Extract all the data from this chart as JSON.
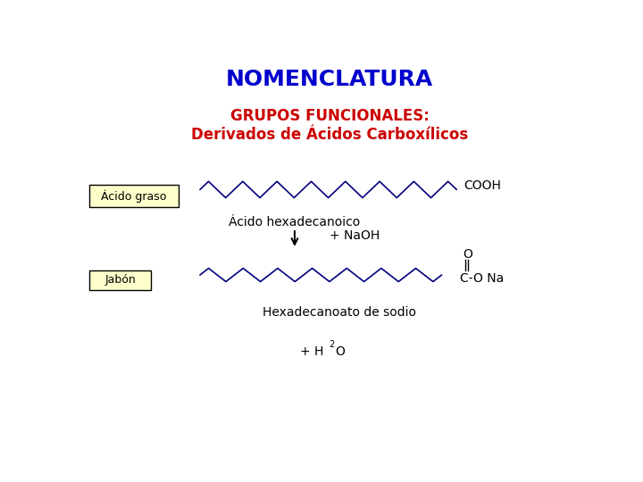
{
  "title": "NOMENCLATURA",
  "title_color": "#0000CC",
  "subtitle1": "GRUPOS FUNCIONALES:",
  "subtitle2": "Derivados de Ácidos Carboxílicos",
  "subtitle_color": "#CC0000",
  "label_acido": "Ácido graso",
  "label_jabon": "Jabón",
  "text_acido_hex": "Ácido hexadecanoico",
  "text_naoh": "+ NaOH",
  "text_hex_sodio": "Hexadecanoato de sodio",
  "text_h2o_pre": "+ H",
  "text_h2o_sub": "2",
  "text_h2o_end": "O",
  "cooh_text": "COOH",
  "cocarb_o": "O",
  "cocarb_eq": "=",
  "cocarb_main": "C-O Na",
  "bg_color": "#FFFFFF",
  "line_color_acid": "#000080",
  "line_color_soap": "#000080",
  "arrow_color": "#000000",
  "box_acid_facecolor": "#FFFFCC",
  "box_acid_edgecolor": "#000000",
  "box_soap_facecolor": "#FFFFCC",
  "box_soap_edgecolor": "#000000",
  "n_peaks_acid": 15,
  "n_peaks_soap": 14,
  "zigzag_amp_acid": 0.022,
  "zigzag_amp_soap": 0.018
}
